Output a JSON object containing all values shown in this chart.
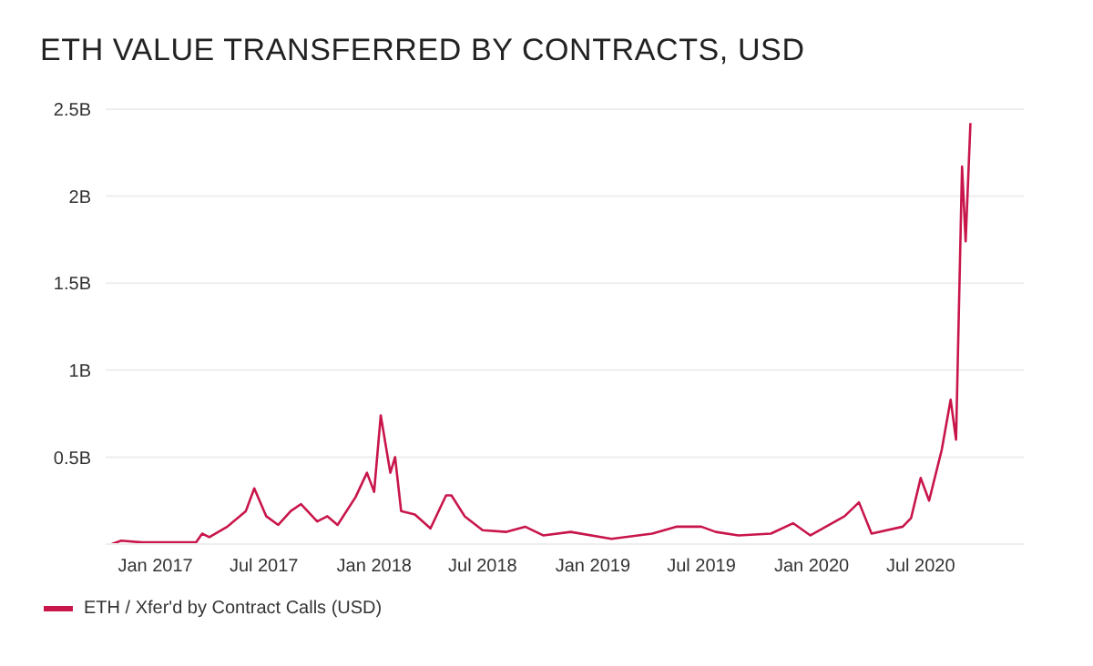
{
  "chart_data": {
    "type": "line",
    "title": "ETH VALUE TRANSFERRED BY CONTRACTS, USD",
    "x": [
      "2016-10-20",
      "2016-11-05",
      "2016-12-10",
      "2017-03-10",
      "2017-03-20",
      "2017-04-01",
      "2017-05-01",
      "2017-06-01",
      "2017-06-15",
      "2017-07-05",
      "2017-07-25",
      "2017-08-15",
      "2017-09-01",
      "2017-09-28",
      "2017-10-15",
      "2017-11-01",
      "2017-12-01",
      "2017-12-20",
      "2018-01-01",
      "2018-01-12",
      "2018-01-28",
      "2018-02-05",
      "2018-02-15",
      "2018-03-10",
      "2018-04-05",
      "2018-05-01",
      "2018-05-10",
      "2018-06-01",
      "2018-07-01",
      "2018-08-10",
      "2018-09-10",
      "2018-10-10",
      "2018-11-25",
      "2019-02-01",
      "2019-04-10",
      "2019-05-20",
      "2019-07-01",
      "2019-07-25",
      "2019-09-01",
      "2019-10-25",
      "2019-12-01",
      "2019-12-30",
      "2020-02-25",
      "2020-03-20",
      "2020-04-10",
      "2020-06-01",
      "2020-06-15",
      "2020-07-01",
      "2020-07-15",
      "2020-08-05",
      "2020-08-20",
      "2020-08-29",
      "2020-09-08",
      "2020-09-14",
      "2020-09-22"
    ],
    "series": [
      {
        "name": "ETH / Xfer'd by Contract Calls (USD)",
        "color": "#c8154a",
        "values": [
          0,
          0.02,
          0.01,
          0.01,
          0.06,
          0.04,
          0.1,
          0.19,
          0.32,
          0.16,
          0.11,
          0.19,
          0.23,
          0.13,
          0.16,
          0.11,
          0.27,
          0.41,
          0.3,
          0.74,
          0.41,
          0.5,
          0.19,
          0.17,
          0.09,
          0.28,
          0.28,
          0.16,
          0.08,
          0.07,
          0.1,
          0.05,
          0.07,
          0.03,
          0.06,
          0.1,
          0.1,
          0.07,
          0.05,
          0.06,
          0.12,
          0.05,
          0.16,
          0.24,
          0.06,
          0.1,
          0.15,
          0.38,
          0.25,
          0.54,
          0.83,
          0.6,
          2.17,
          1.74,
          2.42
        ]
      }
    ],
    "xlim": [
      "2016-10-10",
      "2020-12-20"
    ],
    "xticks": [
      {
        "value": "2017-01-01",
        "label": "Jan 2017"
      },
      {
        "value": "2017-07-01",
        "label": "Jul 2017"
      },
      {
        "value": "2018-01-01",
        "label": "Jan 2018"
      },
      {
        "value": "2018-07-01",
        "label": "Jul 2018"
      },
      {
        "value": "2019-01-01",
        "label": "Jan 2019"
      },
      {
        "value": "2019-07-01",
        "label": "Jul 2019"
      },
      {
        "value": "2020-01-01",
        "label": "Jan 2020"
      },
      {
        "value": "2020-07-01",
        "label": "Jul 2020"
      }
    ],
    "ylim": [
      0,
      2.5
    ],
    "yticks": [
      {
        "value": 0.5,
        "label": "0.5B"
      },
      {
        "value": 1,
        "label": "1B"
      },
      {
        "value": 1.5,
        "label": "1.5B"
      },
      {
        "value": 2,
        "label": "2B"
      },
      {
        "value": 2.5,
        "label": "2.5B"
      }
    ],
    "grid": "y",
    "legend": "bottom left",
    "marker": "none",
    "line_style": "solid"
  }
}
